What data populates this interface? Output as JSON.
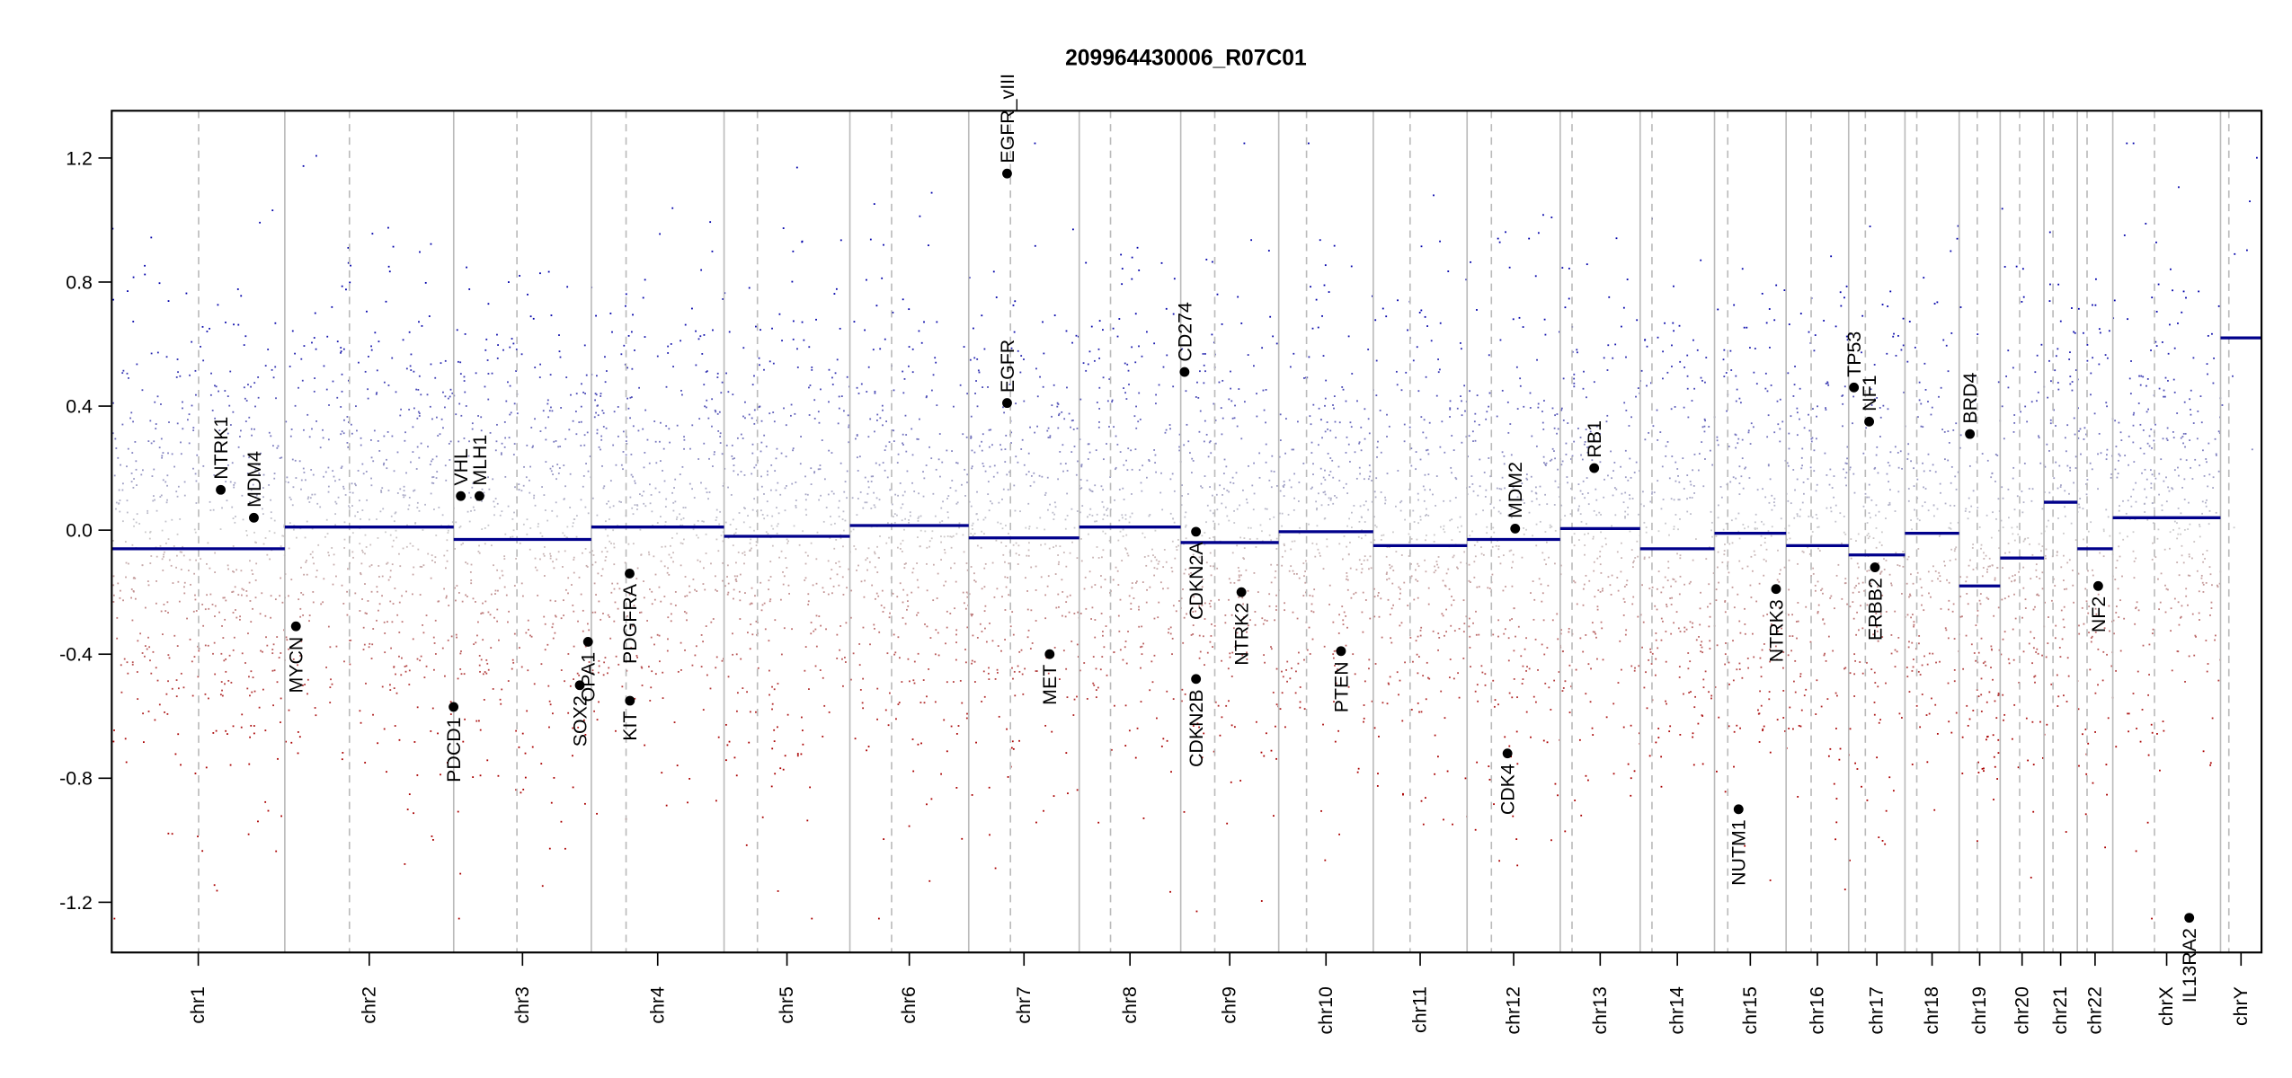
{
  "chart_data": {
    "type": "scatter",
    "title": "209964430006_R07C01",
    "xlabel": "",
    "ylabel": "",
    "ylim": [
      -1.3,
      1.33
    ],
    "yticks": [
      -1.2,
      -0.8,
      -0.4,
      0.0,
      0.4,
      0.8,
      1.2
    ],
    "ytick_labels": [
      "-1.2",
      "-0.8",
      "-0.4",
      "0.0",
      "0.4",
      "0.8",
      "1.2"
    ],
    "clip_range": [
      -1.25,
      1.25
    ],
    "colors": {
      "gain": "#0000aa",
      "loss": "#aa0000",
      "neutral": "#cccccc",
      "segment": "#00008b",
      "separator": "#bbbbbb",
      "gene": "#000000"
    },
    "chromosomes": [
      {
        "name": "chr1",
        "length_mb": 249,
        "centromere_mb": 125,
        "segment": -0.06
      },
      {
        "name": "chr2",
        "length_mb": 243,
        "centromere_mb": 93,
        "segment": 0.01
      },
      {
        "name": "chr3",
        "length_mb": 198,
        "centromere_mb": 91,
        "segment": -0.03
      },
      {
        "name": "chr4",
        "length_mb": 191,
        "centromere_mb": 50,
        "segment": 0.01
      },
      {
        "name": "chr5",
        "length_mb": 181,
        "centromere_mb": 48,
        "segment": -0.02
      },
      {
        "name": "chr6",
        "length_mb": 171,
        "centromere_mb": 60,
        "segment": 0.015
      },
      {
        "name": "chr7",
        "length_mb": 159,
        "centromere_mb": 60,
        "segment": -0.025
      },
      {
        "name": "chr8",
        "length_mb": 146,
        "centromere_mb": 45,
        "segment": 0.01
      },
      {
        "name": "chr9",
        "length_mb": 141,
        "centromere_mb": 49,
        "segment": -0.04
      },
      {
        "name": "chr10",
        "length_mb": 136,
        "centromere_mb": 40,
        "segment": -0.005
      },
      {
        "name": "chr11",
        "length_mb": 135,
        "centromere_mb": 53,
        "segment": -0.05
      },
      {
        "name": "chr12",
        "length_mb": 134,
        "centromere_mb": 35,
        "segment": -0.03
      },
      {
        "name": "chr13",
        "length_mb": 115,
        "centromere_mb": 17,
        "segment": 0.005
      },
      {
        "name": "chr14",
        "length_mb": 107,
        "centromere_mb": 17,
        "segment": -0.06
      },
      {
        "name": "chr15",
        "length_mb": 103,
        "centromere_mb": 19,
        "segment": -0.01
      },
      {
        "name": "chr16",
        "length_mb": 90,
        "centromere_mb": 36,
        "segment": -0.05
      },
      {
        "name": "chr17",
        "length_mb": 81,
        "centromere_mb": 24,
        "segment": -0.08
      },
      {
        "name": "chr18",
        "length_mb": 78,
        "centromere_mb": 17,
        "segment": -0.01
      },
      {
        "name": "chr19",
        "length_mb": 59,
        "centromere_mb": 26,
        "segment": -0.18
      },
      {
        "name": "chr20",
        "length_mb": 63,
        "centromere_mb": 28,
        "segment": -0.09
      },
      {
        "name": "chr21",
        "length_mb": 48,
        "centromere_mb": 13,
        "segment": 0.09
      },
      {
        "name": "chr22",
        "length_mb": 51,
        "centromere_mb": 14,
        "segment": -0.06
      },
      {
        "name": "chrX",
        "length_mb": 155,
        "centromere_mb": 60,
        "segment": 0.04
      },
      {
        "name": "chrY",
        "length_mb": 59,
        "centromere_mb": 12,
        "segment": 0.62
      }
    ],
    "genes": [
      {
        "name": "NTRK1",
        "chr": "chr1",
        "pos_mb": 156.8,
        "value": 0.13
      },
      {
        "name": "MDM4",
        "chr": "chr1",
        "pos_mb": 204.5,
        "value": 0.04
      },
      {
        "name": "MYCN",
        "chr": "chr2",
        "pos_mb": 16.0,
        "value": -0.31
      },
      {
        "name": "PDCD1",
        "chr": "chr2",
        "pos_mb": 242.8,
        "value": -0.57
      },
      {
        "name": "VHL",
        "chr": "chr3",
        "pos_mb": 10.2,
        "value": 0.11
      },
      {
        "name": "MLH1",
        "chr": "chr3",
        "pos_mb": 37.0,
        "value": 0.11
      },
      {
        "name": "SOX2",
        "chr": "chr3",
        "pos_mb": 181.4,
        "value": -0.5
      },
      {
        "name": "OPA1",
        "chr": "chr3",
        "pos_mb": 193.3,
        "value": -0.36
      },
      {
        "name": "KIT",
        "chr": "chr4",
        "pos_mb": 55.5,
        "value": -0.55
      },
      {
        "name": "PDGFRA",
        "chr": "chr4",
        "pos_mb": 55.1,
        "value": -0.14
      },
      {
        "name": "EGFR",
        "chr": "chr7",
        "pos_mb": 55.2,
        "value": 0.41
      },
      {
        "name": "EGFR_vIII",
        "chr": "chr7",
        "pos_mb": 55.2,
        "value": 1.15
      },
      {
        "name": "MET",
        "chr": "chr7",
        "pos_mb": 116.4,
        "value": -0.4
      },
      {
        "name": "CD274",
        "chr": "chr9",
        "pos_mb": 5.5,
        "value": 0.51
      },
      {
        "name": "CDKN2A",
        "chr": "chr9",
        "pos_mb": 21.97,
        "value": -0.005
      },
      {
        "name": "CDKN2B",
        "chr": "chr9",
        "pos_mb": 22.0,
        "value": -0.48
      },
      {
        "name": "NTRK2",
        "chr": "chr9",
        "pos_mb": 87.3,
        "value": -0.2
      },
      {
        "name": "PTEN",
        "chr": "chr10",
        "pos_mb": 89.6,
        "value": -0.39
      },
      {
        "name": "CDK4",
        "chr": "chr12",
        "pos_mb": 58.1,
        "value": -0.72
      },
      {
        "name": "MDM2",
        "chr": "chr12",
        "pos_mb": 69.2,
        "value": 0.005
      },
      {
        "name": "RB1",
        "chr": "chr13",
        "pos_mb": 48.9,
        "value": 0.2
      },
      {
        "name": "NUTM1",
        "chr": "chr15",
        "pos_mb": 34.6,
        "value": -0.9
      },
      {
        "name": "NTRK3",
        "chr": "chr15",
        "pos_mb": 88.5,
        "value": -0.19
      },
      {
        "name": "TP53",
        "chr": "chr17",
        "pos_mb": 7.6,
        "value": 0.46
      },
      {
        "name": "NF1",
        "chr": "chr17",
        "pos_mb": 29.5,
        "value": 0.35
      },
      {
        "name": "ERBB2",
        "chr": "chr17",
        "pos_mb": 37.8,
        "value": -0.12
      },
      {
        "name": "BRD4",
        "chr": "chr19",
        "pos_mb": 15.4,
        "value": 0.31
      },
      {
        "name": "NF2",
        "chr": "chr22",
        "pos_mb": 30.0,
        "value": -0.18
      },
      {
        "name": "IL13RA2",
        "chr": "chrX",
        "pos_mb": 110.0,
        "value": -1.25
      }
    ]
  }
}
